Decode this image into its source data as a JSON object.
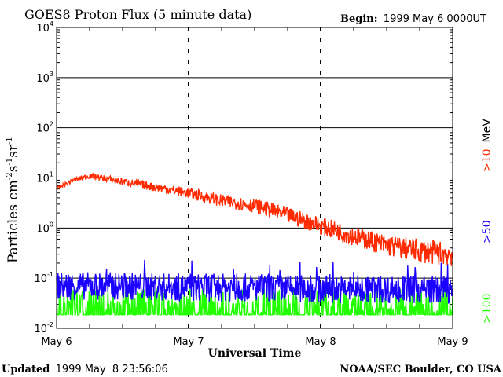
{
  "chart_data": {
    "type": "line",
    "title": "GOES8 Proton Flux (5 minute data)",
    "begin_label": "Begin:",
    "begin_value": "1999 May 6 0000UT",
    "ylabel_main": "Particles cm",
    "ylabel_sup1": "-2",
    "ylabel_mid1": "s",
    "ylabel_sup2": "-1",
    "ylabel_mid2": "sr",
    "ylabel_sup3": "-1",
    "xlabel": "Universal Time",
    "y_scale": "log",
    "ylim": [
      0.01,
      10000
    ],
    "y_ticks": [
      {
        "base": "10",
        "exp": "4",
        "value": 10000
      },
      {
        "base": "10",
        "exp": "3",
        "value": 1000
      },
      {
        "base": "10",
        "exp": "2",
        "value": 100
      },
      {
        "base": "10",
        "exp": "1",
        "value": 10
      },
      {
        "base": "10",
        "exp": "0",
        "value": 1
      },
      {
        "base": "10",
        "exp": "-1",
        "value": 0.1
      },
      {
        "base": "10",
        "exp": "-2",
        "value": 0.01
      }
    ],
    "xlim": [
      "1999-05-06T00:00",
      "1999-05-09T00:00"
    ],
    "x_ticks": [
      {
        "label": "May 6",
        "value": "1999-05-06T00:00"
      },
      {
        "label": "May 7",
        "value": "1999-05-07T00:00"
      },
      {
        "label": "May 8",
        "value": "1999-05-08T00:00"
      },
      {
        "label": "May 9",
        "value": "1999-05-09T00:00"
      }
    ],
    "grid": true,
    "series": [
      {
        "name": ">10",
        "unit": "MeV",
        "color": "#ff2a00",
        "x": [
          "1999-05-06T00:00",
          "1999-05-06T03:00",
          "1999-05-06T06:00",
          "1999-05-06T12:00",
          "1999-05-06T18:00",
          "1999-05-07T00:00",
          "1999-05-07T06:00",
          "1999-05-07T12:00",
          "1999-05-07T18:00",
          "1999-05-08T00:00",
          "1999-05-08T06:00",
          "1999-05-08T12:00",
          "1999-05-08T18:00",
          "1999-05-09T00:00"
        ],
        "values": [
          6,
          9,
          11,
          8.5,
          6.5,
          5,
          3.5,
          2.8,
          1.8,
          1.1,
          0.7,
          0.45,
          0.35,
          0.3
        ]
      },
      {
        "name": ">50",
        "color": "#1a00ff",
        "x": [
          "1999-05-06T00:00",
          "1999-05-06T12:00",
          "1999-05-07T00:00",
          "1999-05-07T12:00",
          "1999-05-08T00:00",
          "1999-05-08T12:00",
          "1999-05-09T00:00"
        ],
        "values": [
          0.07,
          0.07,
          0.065,
          0.065,
          0.06,
          0.06,
          0.06
        ]
      },
      {
        "name": ">100",
        "color": "#22ff00",
        "x": [
          "1999-05-06T00:00",
          "1999-05-06T12:00",
          "1999-05-07T00:00",
          "1999-05-07T12:00",
          "1999-05-08T00:00",
          "1999-05-08T12:00",
          "1999-05-09T00:00"
        ],
        "values": [
          0.035,
          0.035,
          0.035,
          0.035,
          0.035,
          0.035,
          0.035
        ]
      }
    ]
  },
  "footer": {
    "updated_label": "Updated",
    "updated_value": "1999 May  8 23:56:06",
    "source": "NOAA/SEC Boulder, CO USA"
  }
}
